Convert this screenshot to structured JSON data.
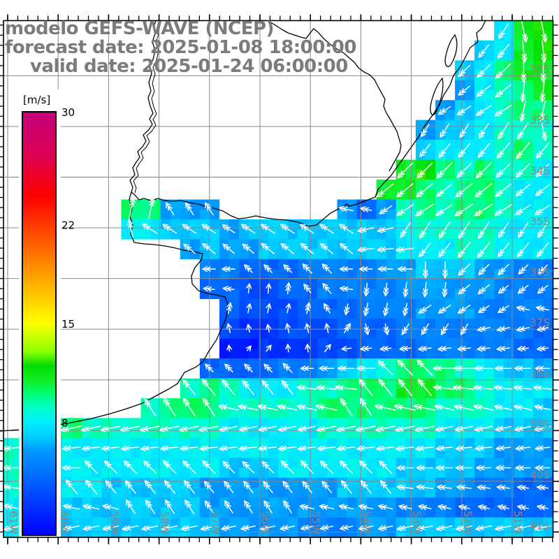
{
  "title": {
    "model_line": "modelo GEFS-WAVE (NCEP)",
    "forecast_line": "forecast date: 2025-01-08 18:00:00",
    "valid_line": "valid date: 2025-01-24 06:00:00"
  },
  "colorbar": {
    "unit": "[m/s]",
    "min": 0,
    "max": 30,
    "tick_labels": [
      "30",
      "22",
      "15",
      "8"
    ],
    "tick_values": [
      30,
      22,
      15,
      8
    ]
  },
  "map": {
    "lat_labels": [
      "32S",
      "33S",
      "34S",
      "35S",
      "36S",
      "37S",
      "38S",
      "39S",
      "40S",
      "41S"
    ],
    "lon_labels": [
      "61W",
      "60W",
      "59W",
      "58W",
      "57W",
      "56W",
      "55W",
      "54W",
      "53W",
      "52W",
      "51W"
    ],
    "gridline_color": "#8a8a8a",
    "label_color": "#9b8273",
    "title_color": "#7b7b7b",
    "land_color": "#ffffff",
    "coast_color": "#000000",
    "arrow_color": "#ffffff"
  },
  "chart_data": {
    "type": "heatmap",
    "title": "modelo GEFS-WAVE (NCEP)",
    "units": "m/s",
    "colorbar_range": [
      0,
      30
    ],
    "colorbar_ticks": [
      8,
      15,
      22,
      30
    ],
    "lat_ticks": [
      "32S",
      "33S",
      "34S",
      "35S",
      "36S",
      "37S",
      "38S",
      "39S",
      "40S",
      "41S"
    ],
    "lon_ticks": [
      "61W",
      "60W",
      "59W",
      "58W",
      "57W",
      "56W",
      "55W",
      "54W",
      "53W",
      "52W",
      "51W"
    ],
    "grid_cols": 28,
    "grid_rows": 26,
    "speed_encoding": "one char per cell: '.'=land/no-data, '0'-'9'=0-9 m/s, 'a'=10,'b'=11,'c'=12,'d'=13 m/s",
    "direction_encoding": "arrow points toward: N,E,S,W; A=NE,B=SE,C=SW,D=NW; '.'=no arrow",
    "speed_grid": [
      ".........................8bc",
      "........................78bc",
      ".......................78abb",
      ".......................689ab",
      "......................6789aa",
      ".....................6778999",
      ".....................78889a9",
      "....................bca9a998",
      "...................bba9aa988",
      "......aa666......6469a9aa988",
      "......8877767777777789999888",
      ".........6766777777788899888",
      "..........554445555667776655",
      "..........443344555566666555",
      "...........43334445556665555",
      "...........32233344455555554",
      "...........11222334445555544",
      "..........4444556789aaa98776",
      ".........9a988899aaabbaa9888",
      ".......9aaa99999aaaaaa999887",
      "..aa999999988888999999888777",
      "9988888888888888888888777666",
      "9888888888877788888877776666",
      "9888877777666666677777665544",
      "8877777777666666666655544444",
      "8877777777766665556677777777"
    ],
    "direction_grid": [
      ".........................CSS",
      "........................CCSS",
      ".......................CCCSS",
      ".......................CCCSS",
      "......................CCCCSS",
      ".....................CCCCCCS",
      ".....................CCCCCCC",
      "....................CCCCCCCC",
      "...................CCCCCCCCC",
      "......NNDDD......WWCCCCCCCCC",
      "......NDDDDDDDDDDDWWCCCCCCCC",
      ".........DDDDDDDDDWWWCCCCCCC",
      "..........WWDDDDDWWWWSSCCCCC",
      "..........WWNNNDDWSSSSSCCCCC",
      "...........NNNNNDSSSSCCCCCWW",
      "...........NNNNNNASSCCCCWWWW",
      "...........NAANNAWWWWWWWWWWW",
      "..........DDDDDWWWWDDDWWWWWW",
      ".........DDDDDDWWWDDDDWWWWWW",
      ".......DDDDWWWWWWDDWWWWWWWWW",
      "..WWWWWWWWWWWWWWWWWWWWWWWWWW",
      "WWWWWWWWWWWWWWWWWWWWWWWWWWWW",
      "WWWWDDDDDDDDDDDDDDDDWWWWWWWW",
      "WWWDDDDDDDDDDDDDDDDDWWWWWWWW",
      "WWWWWWDDDDDDDDDWWWWWWWWWWWWW",
      "WWWWWWWWWWWWWWWWWWWWWWWWWWWW"
    ],
    "colormap": [
      [
        0,
        "#0000ff"
      ],
      [
        2,
        "#0033ff"
      ],
      [
        4,
        "#0066ff"
      ],
      [
        6,
        "#0099ff"
      ],
      [
        7,
        "#00ccff"
      ],
      [
        8,
        "#00eeff"
      ],
      [
        9,
        "#00ffcc"
      ],
      [
        10,
        "#00ff77"
      ],
      [
        11,
        "#11ee22"
      ],
      [
        12,
        "#00dd00"
      ],
      [
        13,
        "#88ff00"
      ],
      [
        15,
        "#ffff00"
      ],
      [
        18,
        "#ffaa00"
      ],
      [
        21,
        "#ff5500"
      ],
      [
        24,
        "#ff0000"
      ],
      [
        27,
        "#dd0055"
      ],
      [
        30,
        "#c4007a"
      ]
    ]
  }
}
